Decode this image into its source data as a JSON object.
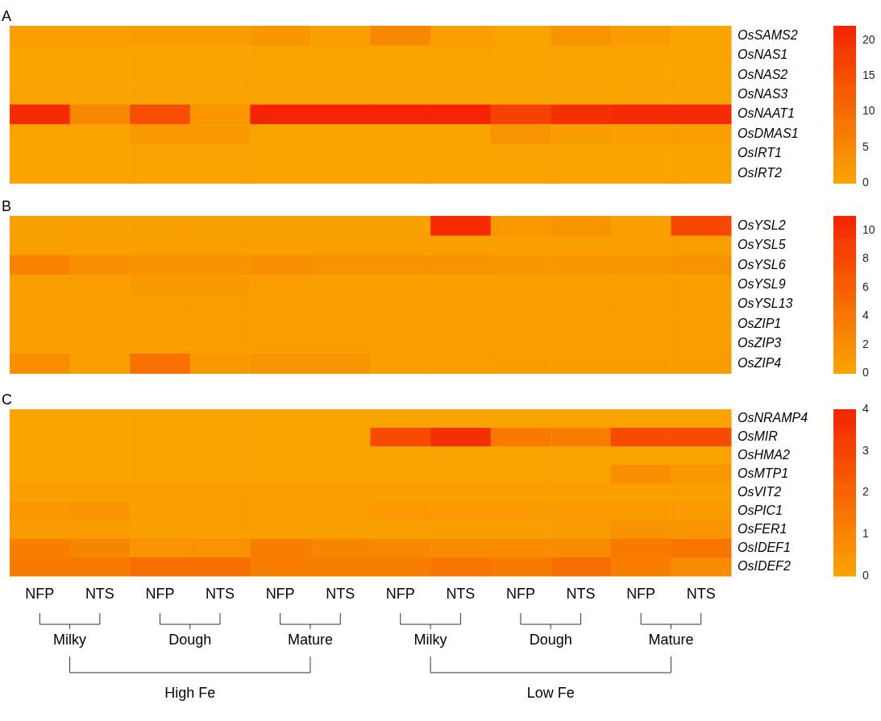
{
  "chart_data": [
    {
      "type": "heatmap",
      "title": "A",
      "tick_labels": "y",
      "categories": [
        null,
        null,
        null,
        null,
        null,
        null,
        null,
        null,
        null,
        null,
        null,
        null
      ],
      "y_categories": [
        "OsSAMS2",
        "OsNAS1",
        "OsNAS2",
        "OsNAS3",
        "OsNAAT1",
        "OsDMAS1",
        "OsIRT1",
        "OsIRT2"
      ],
      "cells": [
        [
          1,
          1,
          1.5,
          1.5,
          2.5,
          1,
          5,
          1,
          0.5,
          3,
          1.5,
          0.5
        ],
        [
          0.5,
          0.5,
          0.5,
          0.5,
          0.5,
          0.5,
          0.5,
          0.5,
          0.5,
          0.5,
          0.5,
          0.5
        ],
        [
          0.3,
          0.3,
          0.3,
          0.3,
          0.3,
          0.3,
          0.3,
          0.3,
          0.3,
          0.3,
          0.3,
          0.3
        ],
        [
          0.3,
          0.3,
          0.3,
          0.3,
          0.3,
          0.3,
          0.3,
          0.3,
          0.3,
          0.3,
          0.3,
          0.3
        ],
        [
          21,
          5,
          15,
          2.5,
          22,
          22,
          22,
          22,
          17,
          20,
          21,
          21
        ],
        [
          0.5,
          0.5,
          2,
          2,
          0.5,
          0.5,
          0.5,
          0.5,
          3,
          1.5,
          1,
          1
        ],
        [
          0.3,
          0.3,
          0.3,
          0.3,
          0.3,
          0.3,
          0.3,
          0.3,
          0.3,
          0.3,
          0.3,
          0.3
        ],
        [
          0.3,
          0.3,
          0.3,
          0.3,
          0.3,
          0.3,
          0.3,
          0.3,
          0.3,
          0.3,
          0.3,
          0.3
        ]
      ],
      "clim": [
        0,
        22
      ],
      "cticks": [
        0,
        5,
        10,
        15,
        20
      ]
    },
    {
      "type": "heatmap",
      "title": "B",
      "tick_labels": "y",
      "categories": [
        null,
        null,
        null,
        null,
        null,
        null,
        null,
        null,
        null,
        null,
        null,
        null
      ],
      "y_categories": [
        "OsYSL2",
        "OsYSL5",
        "OsYSL6",
        "OsYSL9",
        "OsYSL13",
        "OsZIP1",
        "OsZIP3",
        "OsZIP4"
      ],
      "cells": [
        [
          0.3,
          0.3,
          0.3,
          0.3,
          0.3,
          0.3,
          0.3,
          10.5,
          1,
          1.5,
          0.5,
          8
        ],
        [
          0.5,
          0.5,
          0.5,
          0.5,
          0.5,
          0.5,
          0.5,
          0.5,
          0.5,
          0.5,
          0.5,
          0.5
        ],
        [
          3,
          2,
          1.5,
          1.5,
          2,
          1.5,
          1.5,
          1.5,
          1.2,
          1.2,
          1.2,
          1.5
        ],
        [
          0.5,
          0.5,
          1,
          1,
          0.5,
          0.5,
          0.5,
          0.5,
          0.5,
          0.5,
          0.5,
          0.5
        ],
        [
          0.5,
          0.5,
          0.5,
          0.5,
          0.5,
          0.5,
          0.5,
          0.5,
          0.5,
          0.5,
          0.5,
          0.5
        ],
        [
          0.5,
          0.5,
          0.5,
          0.5,
          0.5,
          0.5,
          0.5,
          0.5,
          0.5,
          0.5,
          0.5,
          0.5
        ],
        [
          0.5,
          0.5,
          0.5,
          0.5,
          0.5,
          0.5,
          0.5,
          0.5,
          0.5,
          0.5,
          0.5,
          0.5
        ],
        [
          2,
          0.5,
          4.5,
          1,
          1.5,
          1.5,
          0.5,
          0.5,
          0.8,
          0.8,
          0.8,
          0.8
        ]
      ],
      "clim": [
        0,
        11
      ],
      "cticks": [
        0,
        2,
        4,
        6,
        8,
        10
      ]
    },
    {
      "type": "heatmap",
      "title": "C",
      "categories": [
        "NFP",
        "NTS",
        "NFP",
        "NTS",
        "NFP",
        "NTS",
        "NFP",
        "NTS",
        "NFP",
        "NTS",
        "NFP",
        "NTS"
      ],
      "y_categories": [
        "OsNRAMP4",
        "OsMIR",
        "OsHMA2",
        "OsMTP1",
        "OsVIT2",
        "OsPIC1",
        "OsFER1",
        "OsIDEF1",
        "OsIDEF2"
      ],
      "cells": [
        [
          0.1,
          0.1,
          0.1,
          0.1,
          0.1,
          0.1,
          0.1,
          0.1,
          0.1,
          0.1,
          0.1,
          0.1
        ],
        [
          0.1,
          0.1,
          0.1,
          0.1,
          0.1,
          0.1,
          2.8,
          3.7,
          1.3,
          1.2,
          2.8,
          2.8
        ],
        [
          0.1,
          0.1,
          0.1,
          0.1,
          0.1,
          0.1,
          0.1,
          0.1,
          0.1,
          0.1,
          0.1,
          0.1
        ],
        [
          0.1,
          0.1,
          0.1,
          0.1,
          0.1,
          0.1,
          0.1,
          0.1,
          0.1,
          0.1,
          0.7,
          0.4
        ],
        [
          0.15,
          0.15,
          0.15,
          0.15,
          0.15,
          0.15,
          0.15,
          0.15,
          0.15,
          0.15,
          0.15,
          0.15
        ],
        [
          0.4,
          0.5,
          0.2,
          0.2,
          0.2,
          0.2,
          0.35,
          0.35,
          0.35,
          0.35,
          0.35,
          0.35
        ],
        [
          0.3,
          0.3,
          0.2,
          0.2,
          0.2,
          0.2,
          0.2,
          0.2,
          0.2,
          0.3,
          0.6,
          0.5
        ],
        [
          1.2,
          1,
          0.5,
          0.6,
          1.2,
          1,
          0.9,
          0.8,
          0.8,
          0.8,
          1.3,
          1.5
        ],
        [
          1.3,
          1.3,
          1.7,
          1.7,
          1.2,
          1.2,
          1.2,
          1.5,
          1.3,
          1.7,
          1.2,
          0.8
        ]
      ],
      "clim": [
        0,
        4
      ],
      "cticks": [
        0,
        1,
        2,
        3,
        4
      ],
      "annotations": [
        "Milky",
        "Dough",
        "Mature",
        "Milky",
        "Dough",
        "Mature",
        "High Fe",
        "Low Fe"
      ]
    }
  ]
}
